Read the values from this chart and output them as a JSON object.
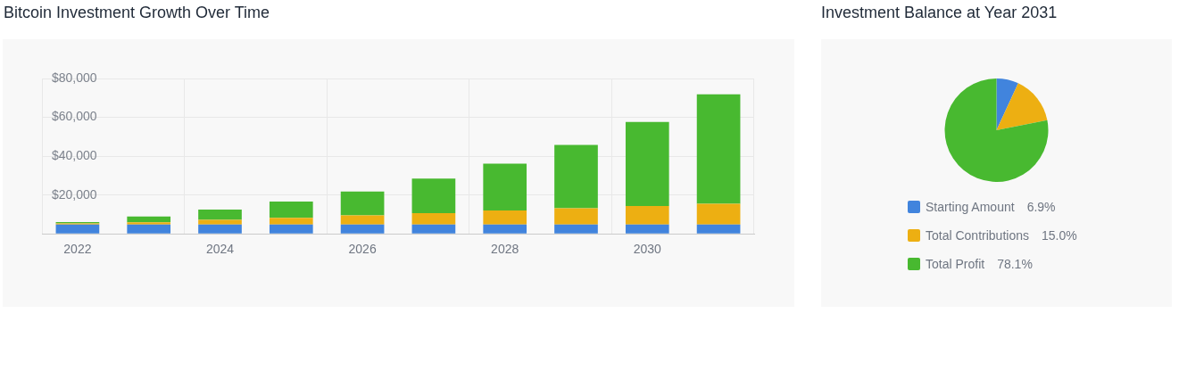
{
  "chart_data": [
    {
      "type": "bar",
      "title": "Bitcoin Investment Growth Over Time",
      "categories": [
        "2022",
        null,
        "2024",
        null,
        "2026",
        null,
        "2028",
        null,
        "2030",
        null
      ],
      "stacked": true,
      "series": [
        {
          "color": "#4184dd",
          "values": [
            4800,
            4800,
            4800,
            4800,
            4800,
            4800,
            4800,
            4800,
            4800,
            4800
          ]
        },
        {
          "color": "#edaf12",
          "values": [
            600,
            1100,
            2400,
            3500,
            4700,
            5800,
            7200,
            8400,
            9500,
            10700
          ]
        },
        {
          "color": "#48b930",
          "values": [
            700,
            3000,
            5300,
            8300,
            12300,
            17800,
            24200,
            32600,
            43300,
            56400
          ]
        }
      ],
      "ylim": [
        0,
        80000
      ],
      "yticks": [
        {
          "value": 0,
          "label": null
        },
        {
          "value": 20000,
          "label": "$20,000"
        },
        {
          "value": 40000,
          "label": "$40,000"
        },
        {
          "value": 60000,
          "label": "$60,000"
        },
        {
          "value": 80000,
          "label": "$80,000"
        }
      ],
      "grid": true,
      "legend": false
    },
    {
      "type": "pie",
      "title": "Investment Balance at Year 2031",
      "categories": [
        "Starting Amount",
        "Total Contributions",
        "Total Profit"
      ],
      "values": [
        6.9,
        15.0,
        78.1
      ],
      "value_labels": [
        "6.9%",
        "15.0%",
        "78.1%"
      ],
      "colors": [
        "#4184dd",
        "#edaf12",
        "#48b930"
      ],
      "legend": "bottom"
    }
  ]
}
